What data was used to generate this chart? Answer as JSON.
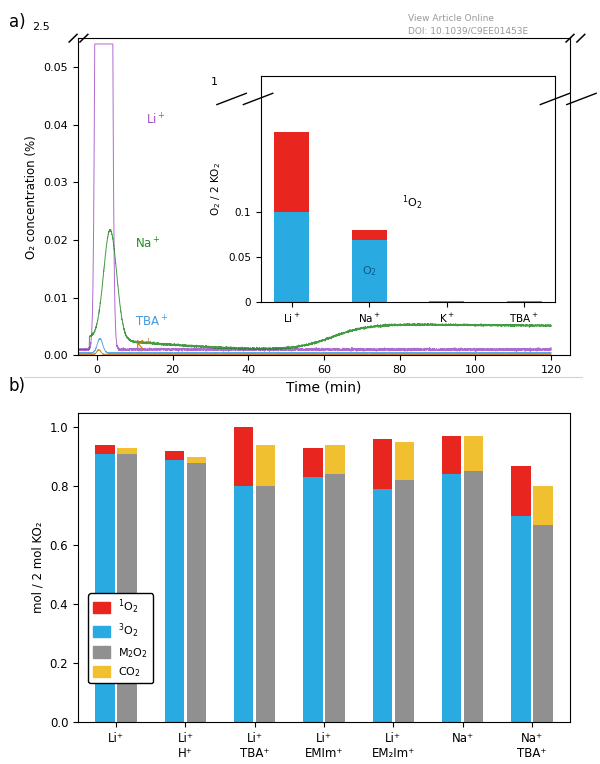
{
  "panel_a": {
    "title_label": "a)",
    "xlabel": "Time (min)",
    "ylabel": "O₂ concentration (%)",
    "xlim": [
      -5,
      125
    ],
    "ylim_main": [
      0,
      0.055
    ],
    "yticks_main": [
      0,
      0.01,
      0.02,
      0.03,
      0.04,
      0.05
    ],
    "xticks": [
      0,
      20,
      40,
      60,
      80,
      100,
      120
    ],
    "line_colors": {
      "Li+": "#A050C8",
      "Na+": "#228B22",
      "TBA+": "#4499DD",
      "K+": "#CC7700"
    },
    "inset": {
      "categories": [
        "Li⁺",
        "Na⁺",
        "K⁺",
        "TBA⁺"
      ],
      "O2_values": [
        0.1,
        0.068,
        0.001,
        0.001
      ],
      "sO2_values": [
        0.088,
        0.012,
        0.0,
        0.0
      ],
      "ylabel": "O₂ / 2 KO₂",
      "color_O2": "#29ABE2",
      "color_1O2": "#E8251F"
    },
    "watermark_line1": "View Article Online",
    "watermark_line2": "DOI: 10.1039/C9EE01453E"
  },
  "panel_b": {
    "title_label": "b)",
    "ylabel": "mol / 2 mol KO₂",
    "ylim": [
      0,
      1.05
    ],
    "yticks": [
      0,
      0.2,
      0.4,
      0.6,
      0.8,
      1.0
    ],
    "categories": [
      "Li⁺",
      "Li⁺\nH⁺",
      "Li⁺\nTBA⁺",
      "Li⁺\nEMIm⁺",
      "Li⁺\nEM₂Im⁺",
      "Na⁺",
      "Na⁺\nTBA⁺"
    ],
    "left_bars": {
      "3O2": [
        0.91,
        0.89,
        0.8,
        0.83,
        0.79,
        0.84,
        0.7
      ],
      "1O2": [
        0.03,
        0.03,
        0.2,
        0.1,
        0.17,
        0.13,
        0.17
      ]
    },
    "right_bars": {
      "M2O2": [
        0.91,
        0.88,
        0.8,
        0.84,
        0.82,
        0.85,
        0.67
      ],
      "CO2": [
        0.02,
        0.02,
        0.14,
        0.1,
        0.13,
        0.12,
        0.13
      ]
    },
    "colors": {
      "1O2": "#E8251F",
      "3O2": "#29ABE2",
      "M2O2": "#909090",
      "CO2": "#F0C030"
    }
  }
}
